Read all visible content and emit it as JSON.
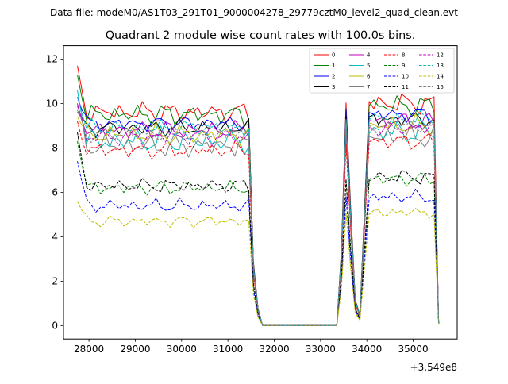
{
  "suptitle": "Data file: modeM0/AS1T03_291T01_9000004278_29779cztM0_level2_quad_clean.evt",
  "chart_data": {
    "type": "line",
    "title": "Quadrant 2 module wise count rates with 100.0s bins.",
    "xlabel": "",
    "ylabel": "",
    "x_offset_label": "+3.549e8",
    "xlim": [
      27450,
      35950
    ],
    "ylim": [
      -0.6,
      12.6
    ],
    "xticks": [
      28000,
      29000,
      30000,
      31000,
      32000,
      33000,
      34000,
      35000
    ],
    "xtick_labels": [
      "28000",
      "29000",
      "30000",
      "31000",
      "32000",
      "33000",
      "34000",
      "35000"
    ],
    "yticks": [
      0,
      2,
      4,
      6,
      8,
      10,
      12
    ],
    "ytick_labels": [
      "0",
      "2",
      "4",
      "6",
      "8",
      "10",
      "12"
    ],
    "legend_location": "upper right",
    "segments": [
      {
        "start": 27750,
        "end": 31450
      },
      {
        "start": 33450,
        "end": 33750
      },
      {
        "start": 33950,
        "end": 35450
      }
    ],
    "series": [
      {
        "name": "0",
        "color": "#ff0000",
        "style": "solid",
        "level": 9.6,
        "start": 11.7,
        "amp": 0.45,
        "phase": 0.3
      },
      {
        "name": "1",
        "color": "#008000",
        "style": "solid",
        "level": 9.5,
        "start": 11.3,
        "amp": 0.45,
        "phase": 1.7
      },
      {
        "name": "2",
        "color": "#0000ff",
        "style": "solid",
        "level": 9.1,
        "start": 10.3,
        "amp": 0.35,
        "phase": 2.9
      },
      {
        "name": "3",
        "color": "#000000",
        "style": "solid",
        "level": 8.9,
        "start": 9.6,
        "amp": 0.35,
        "phase": 4.1
      },
      {
        "name": "4",
        "color": "#bf00bf",
        "style": "solid",
        "level": 8.8,
        "start": 10.0,
        "amp": 0.4,
        "phase": 0.9
      },
      {
        "name": "5",
        "color": "#00bfbf",
        "style": "solid",
        "level": 8.3,
        "start": 10.6,
        "amp": 0.55,
        "phase": 2.2
      },
      {
        "name": "6",
        "color": "#bfbf00",
        "style": "solid",
        "level": 8.6,
        "start": 9.4,
        "amp": 0.45,
        "phase": 3.5
      },
      {
        "name": "7",
        "color": "#808080",
        "style": "solid",
        "level": 8.1,
        "start": 9.9,
        "amp": 0.5,
        "phase": 5.0
      },
      {
        "name": "8",
        "color": "#ff0000",
        "style": "dashed",
        "level": 7.9,
        "start": 9.2,
        "amp": 0.35,
        "phase": 1.2
      },
      {
        "name": "9",
        "color": "#008000",
        "style": "dashed",
        "level": 6.2,
        "start": 8.3,
        "amp": 0.3,
        "phase": 2.6
      },
      {
        "name": "10",
        "color": "#0000ff",
        "style": "dashed",
        "level": 5.4,
        "start": 7.4,
        "amp": 0.3,
        "phase": 3.8
      },
      {
        "name": "11",
        "color": "#000000",
        "style": "dashed",
        "level": 6.3,
        "start": 8.7,
        "amp": 0.3,
        "phase": 0.5
      },
      {
        "name": "12",
        "color": "#bf00bf",
        "style": "dashed",
        "level": 8.5,
        "start": 9.9,
        "amp": 0.35,
        "phase": 4.6
      },
      {
        "name": "13",
        "color": "#00bfbf",
        "style": "dashed",
        "level": 8.9,
        "start": 10.3,
        "amp": 0.35,
        "phase": 1.9
      },
      {
        "name": "14",
        "color": "#bfbf00",
        "style": "dashed",
        "level": 4.7,
        "start": 5.6,
        "amp": 0.25,
        "phase": 3.1
      },
      {
        "name": "15",
        "color": "#808080",
        "style": "dashed",
        "level": 8.6,
        "start": 9.7,
        "amp": 0.3,
        "phase": 5.5
      }
    ]
  }
}
